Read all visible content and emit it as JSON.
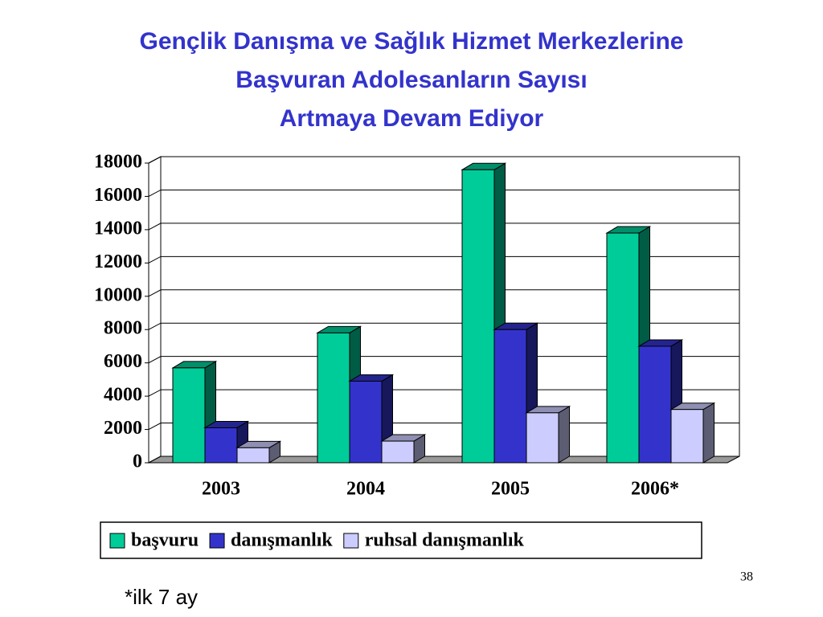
{
  "chart_data": {
    "type": "bar3d",
    "title": [
      "Gençlik Danışma ve Sağlık Hizmet Merkezlerine",
      "Başvuran Adolesanların Sayısı",
      "Artmaya Devam Ediyor"
    ],
    "categories": [
      "2003",
      "2004",
      "2005",
      "2006*"
    ],
    "series": [
      {
        "name": "başvuru",
        "color": "#00cc99",
        "values": [
          5700,
          7800,
          17600,
          13800
        ]
      },
      {
        "name": "danışmanlık",
        "color": "#3333cc",
        "values": [
          2100,
          4900,
          8000,
          7000
        ]
      },
      {
        "name": "ruhsal danışmanlık",
        "color": "#ccccff",
        "values": [
          900,
          1300,
          3000,
          3200
        ]
      }
    ],
    "ylim": [
      0,
      18000
    ],
    "yticks": [
      0,
      2000,
      4000,
      6000,
      8000,
      10000,
      12000,
      14000,
      16000,
      18000
    ],
    "grid": true,
    "legend": "bottom"
  },
  "footnote": "*ilk 7 ay",
  "page_number": "38"
}
